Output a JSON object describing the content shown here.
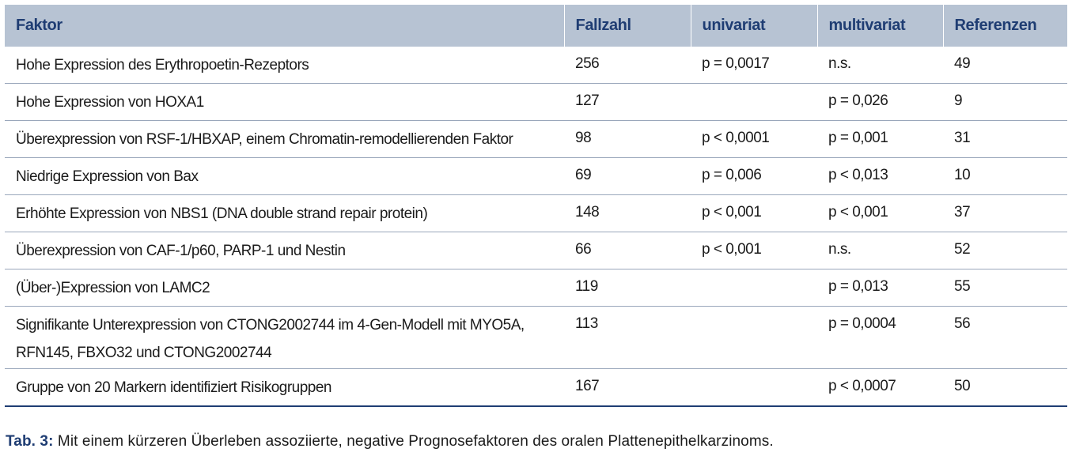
{
  "table": {
    "headers": [
      "Faktor",
      "Fallzahl",
      "univariat",
      "multivariat",
      "Referenzen"
    ],
    "rows": [
      [
        "Hohe Expression des Erythropoetin-Rezeptors",
        "256",
        "p = 0,0017",
        "n.s.",
        "49"
      ],
      [
        "Hohe Expression von HOXA1",
        "127",
        "",
        "p = 0,026",
        "9"
      ],
      [
        "Überexpression von RSF-1/HBXAP, einem Chromatin-remodellierenden Faktor",
        "98",
        "p < 0,0001",
        "p = 0,001",
        "31"
      ],
      [
        "Niedrige Expression von Bax",
        "69",
        "p = 0,006",
        "p < 0,013",
        "10"
      ],
      [
        "Erhöhte Expression von NBS1 (DNA double strand repair protein)",
        "148",
        "p < 0,001",
        "p < 0,001",
        "37"
      ],
      [
        "Überexpression von CAF-1/p60, PARP-1 und Nestin",
        "66",
        "p < 0,001",
        "n.s.",
        "52"
      ],
      [
        "(Über-)Expression von LAMC2",
        "119",
        "",
        "p = 0,013",
        "55"
      ],
      [
        "Signifikante Unterexpression von CTONG2002744 im 4-Gen-Modell mit MYO5A, RFN145, FBXO32 und CTONG2002744",
        "113",
        "",
        "p = 0,0004",
        "56"
      ],
      [
        "Gruppe von 20 Markern identifiziert Risikogruppen",
        "167",
        "",
        "p < 0,0007",
        "50"
      ]
    ]
  },
  "caption": {
    "label": "Tab. 3:",
    "text": " Mit einem kürzeren Überleben assoziierte, negative Prognosefaktoren des oralen Plattenepithelkarzinoms."
  },
  "colors": {
    "header_bg": "#b7c3d3",
    "header_text": "#1f3d73",
    "row_divider": "#9aa7bb"
  }
}
